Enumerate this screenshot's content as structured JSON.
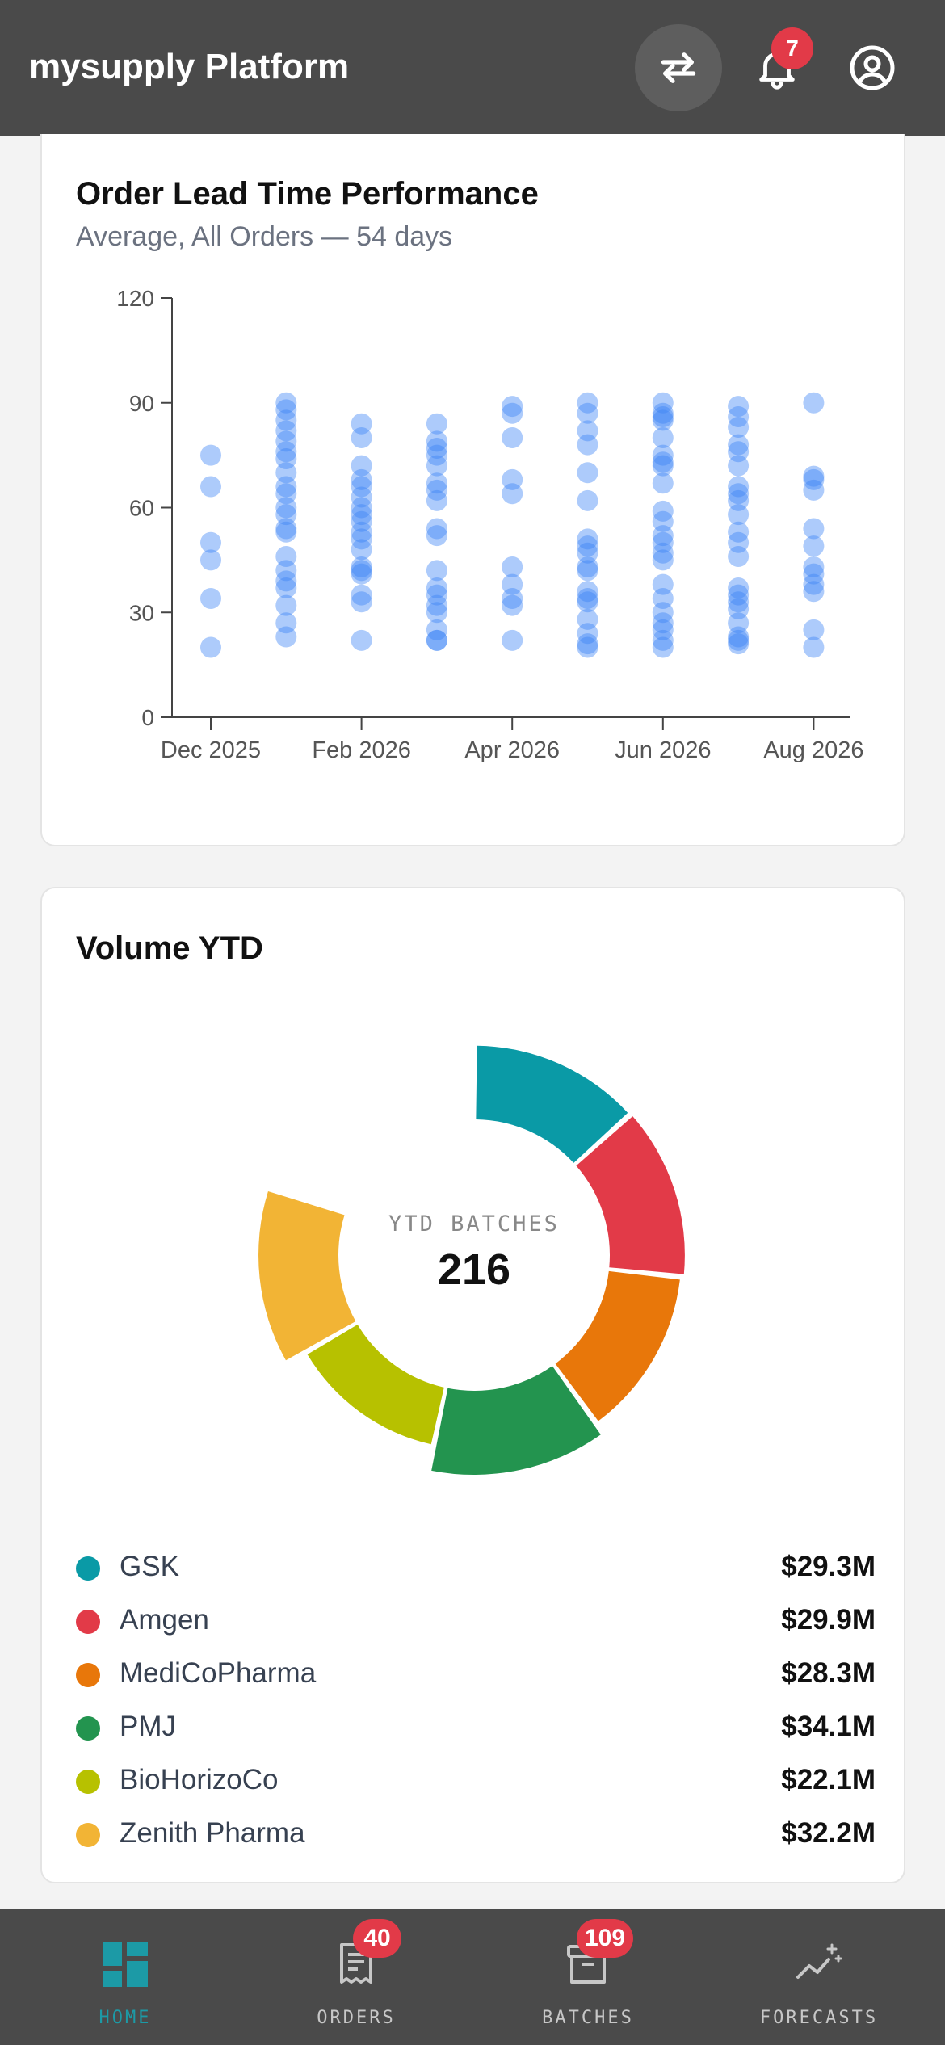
{
  "header": {
    "title": "mysupply Platform",
    "notifications_count": "7"
  },
  "lead_time": {
    "title": "Order Lead Time Performance",
    "subtitle": "Average, All Orders — 54 days"
  },
  "volume": {
    "title": "Volume YTD",
    "center_label": "YTD BATCHES",
    "center_value": "216",
    "legend": [
      {
        "name": "GSK",
        "value": "$29.3M",
        "color": "#0a9aa6"
      },
      {
        "name": "Amgen",
        "value": "$29.9M",
        "color": "#e23a48"
      },
      {
        "name": "MediCoPharma",
        "value": "$28.3M",
        "color": "#e8770a"
      },
      {
        "name": "PMJ",
        "value": "$34.1M",
        "color": "#23944f"
      },
      {
        "name": "BioHorizoCo",
        "value": "$22.1M",
        "color": "#b7c100"
      },
      {
        "name": "Zenith Pharma",
        "value": "$32.2M",
        "color": "#f2b435"
      }
    ]
  },
  "nav": {
    "items": [
      {
        "label": "HOME",
        "icon": "dashboard-icon",
        "badge": ""
      },
      {
        "label": "ORDERS",
        "icon": "receipt-icon",
        "badge": "40"
      },
      {
        "label": "BATCHES",
        "icon": "archive-box-icon",
        "badge": "109"
      },
      {
        "label": "FORECASTS",
        "icon": "trend-sparkle-icon",
        "badge": ""
      }
    ]
  },
  "chart_data": [
    {
      "type": "scatter",
      "title": "Order Lead Time Performance",
      "subtitle": "Average, All Orders — 54 days",
      "ylim": [
        0,
        120
      ],
      "y_ticks": [
        0,
        30,
        60,
        90,
        120
      ],
      "x_tick_labels": [
        "Dec 2025",
        "Feb 2026",
        "Apr 2026",
        "Jun 2026",
        "Aug 2026"
      ],
      "point_color": "#3b82f6",
      "points_by_month": [
        {
          "month": "Dec 2025",
          "y": [
            75,
            66,
            50,
            45,
            34,
            20
          ]
        },
        {
          "month": "Jan 2026",
          "y": [
            90,
            88,
            85,
            82,
            79,
            76,
            74,
            70,
            66,
            64,
            60,
            58,
            54,
            53,
            46,
            42,
            39,
            37,
            32,
            27,
            23
          ]
        },
        {
          "month": "Feb 2026",
          "y": [
            84,
            80,
            72,
            68,
            66,
            63,
            60,
            58,
            56,
            53,
            51,
            48,
            43,
            42,
            41,
            35,
            33,
            22
          ]
        },
        {
          "month": "Mar 2026",
          "y": [
            84,
            79,
            77,
            75,
            72,
            67,
            65,
            62,
            54,
            52,
            42,
            37,
            35,
            32,
            30,
            25,
            22,
            22
          ]
        },
        {
          "month": "Apr 2026",
          "y": [
            89,
            87,
            80,
            68,
            64,
            43,
            38,
            34,
            32,
            22
          ]
        },
        {
          "month": "May 2026",
          "y": [
            90,
            87,
            82,
            78,
            70,
            62,
            51,
            49,
            47,
            43,
            42,
            36,
            34,
            33,
            28,
            24,
            21,
            20
          ]
        },
        {
          "month": "Jun 2026",
          "y": [
            90,
            87,
            86,
            85,
            80,
            75,
            73,
            72,
            67,
            59,
            56,
            52,
            50,
            47,
            45,
            38,
            34,
            30,
            27,
            25,
            22,
            20
          ]
        },
        {
          "month": "Jul 2026",
          "y": [
            89,
            86,
            83,
            78,
            76,
            72,
            66,
            64,
            62,
            58,
            53,
            50,
            46,
            37,
            35,
            33,
            31,
            27,
            23,
            22,
            21
          ]
        },
        {
          "month": "Aug 2026",
          "y": [
            90,
            69,
            68,
            65,
            54,
            49,
            43,
            41,
            38,
            36,
            25,
            20
          ]
        }
      ]
    },
    {
      "type": "pie",
      "title": "Volume YTD",
      "center_label": "YTD BATCHES",
      "center_value": 216,
      "note": "radial bars: partial ring",
      "slices": [
        {
          "name": "GSK",
          "value": 29.3
        },
        {
          "name": "Amgen",
          "value": 29.9
        },
        {
          "name": "MediCoPharma",
          "value": 28.3
        },
        {
          "name": "PMJ",
          "value": 34.1
        },
        {
          "name": "BioHorizoCo",
          "value": 22.1
        },
        {
          "name": "Zenith Pharma",
          "value": 32.2
        }
      ]
    }
  ]
}
